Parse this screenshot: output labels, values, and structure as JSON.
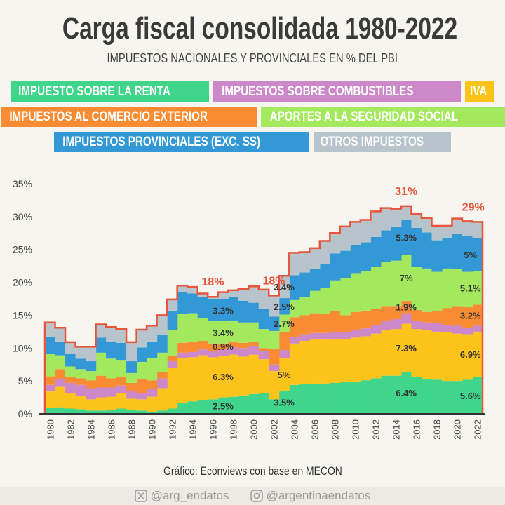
{
  "header": {
    "title": "Carga fiscal consolidada 1980-2022",
    "subtitle": "IMPUESTOS NACIONALES Y PROVINCIALES EN % DEL PBI"
  },
  "legend_rows": [
    [
      0,
      2,
      1
    ],
    [
      3,
      4
    ],
    [
      5,
      6
    ]
  ],
  "chart_data": {
    "type": "area",
    "step": true,
    "stacked": true,
    "title": "Carga fiscal consolidada 1980-2022",
    "subtitle": "IMPUESTOS NACIONALES Y PROVINCIALES EN % DEL PBI",
    "xlabel": "",
    "ylabel": "",
    "ylim": [
      0,
      35
    ],
    "yticks": [
      "0%",
      "5%",
      "10%",
      "15%",
      "20%",
      "25%",
      "30%",
      "35%"
    ],
    "ytick_values": [
      0,
      5,
      10,
      15,
      20,
      25,
      30,
      35
    ],
    "x": [
      1980,
      1981,
      1982,
      1983,
      1984,
      1985,
      1986,
      1987,
      1988,
      1989,
      1990,
      1991,
      1992,
      1993,
      1994,
      1995,
      1996,
      1997,
      1998,
      1999,
      2000,
      2001,
      2002,
      2003,
      2004,
      2005,
      2006,
      2007,
      2008,
      2009,
      2010,
      2011,
      2012,
      2013,
      2014,
      2015,
      2016,
      2017,
      2018,
      2019,
      2020,
      2021,
      2022
    ],
    "xticks": [
      "1980",
      "1982",
      "1984",
      "1986",
      "1988",
      "1990",
      "1992",
      "1994",
      "1996",
      "1998",
      "2000",
      "2002",
      "2004",
      "2006",
      "2008",
      "2010",
      "2012",
      "2014",
      "2016",
      "2018",
      "2020",
      "2022"
    ],
    "grid": false,
    "legend_placement": "top",
    "total_line_color": "#e8553a",
    "series": [
      {
        "name": "IMPUESTO SOBRE LA RENTA",
        "color": "#3fd68b",
        "values": [
          0.9,
          1.0,
          0.8,
          0.7,
          0.5,
          0.5,
          0.6,
          0.8,
          0.6,
          0.5,
          0.3,
          0.5,
          0.8,
          1.6,
          1.9,
          2.1,
          2.2,
          2.5,
          2.6,
          2.8,
          3.0,
          3.1,
          2.2,
          3.5,
          4.4,
          4.5,
          4.6,
          4.6,
          4.7,
          4.8,
          4.9,
          5.1,
          5.4,
          5.8,
          5.8,
          6.4,
          5.6,
          5.3,
          5.2,
          5.0,
          5.0,
          5.2,
          5.6
        ]
      },
      {
        "name": "IVA",
        "color": "#fcc41a",
        "values": [
          2.5,
          3.1,
          2.4,
          2.0,
          1.7,
          2.0,
          2.0,
          2.3,
          1.7,
          1.7,
          2.3,
          3.4,
          6.2,
          6.9,
          6.7,
          6.8,
          6.4,
          6.3,
          6.4,
          5.9,
          6.0,
          5.2,
          4.3,
          5.0,
          6.3,
          6.6,
          6.8,
          6.7,
          6.7,
          6.6,
          6.7,
          6.7,
          6.8,
          6.9,
          7.1,
          7.3,
          7.3,
          7.4,
          7.3,
          7.4,
          7.2,
          6.9,
          6.9
        ]
      },
      {
        "name": "IMPUESTOS SOBRE COMBUSTIBLES",
        "color": "#cc88c8",
        "values": [
          1.0,
          1.2,
          1.5,
          1.7,
          1.7,
          1.5,
          1.4,
          1.2,
          1.2,
          1.0,
          1.2,
          1.5,
          1.0,
          0.8,
          0.8,
          0.9,
          1.0,
          1.0,
          1.1,
          1.3,
          1.3,
          1.2,
          1.0,
          1.2,
          1.0,
          1.0,
          0.9,
          1.0,
          1.0,
          1.0,
          1.1,
          1.2,
          1.3,
          1.4,
          1.5,
          1.6,
          1.3,
          1.2,
          1.3,
          1.1,
          1.2,
          1.0,
          0.9
        ]
      },
      {
        "name": "IMPUESTOS AL COMERCIO EXTERIOR",
        "color": "#f98c33",
        "values": [
          1.3,
          1.5,
          0.9,
          1.0,
          1.2,
          1.8,
          1.4,
          1.3,
          1.2,
          2.1,
          1.3,
          1.0,
          0.8,
          1.5,
          1.6,
          1.3,
          1.1,
          0.9,
          0.9,
          0.8,
          0.6,
          0.5,
          2.4,
          2.7,
          3.0,
          2.9,
          3.0,
          2.9,
          3.3,
          2.6,
          2.8,
          2.7,
          2.4,
          2.3,
          2.0,
          1.9,
          1.6,
          1.6,
          1.8,
          2.6,
          3.0,
          3.2,
          3.2
        ]
      },
      {
        "name": "APORTES A LA SEGURIDAD SOCIAL",
        "color": "#a3e85d",
        "values": [
          3.4,
          2.1,
          1.6,
          1.4,
          1.4,
          3.5,
          3.0,
          2.6,
          1.5,
          2.6,
          3.4,
          2.9,
          4.0,
          4.4,
          4.3,
          3.5,
          3.4,
          3.4,
          3.2,
          3.1,
          3.0,
          2.9,
          2.7,
          2.7,
          2.6,
          2.8,
          3.4,
          4.0,
          4.6,
          5.6,
          5.9,
          6.0,
          6.5,
          6.7,
          6.9,
          7.0,
          6.6,
          6.6,
          6.0,
          6.0,
          5.6,
          5.3,
          5.1
        ]
      },
      {
        "name": "IMPUESTOS PROVINCIALES (EXC. SS)",
        "color": "#3399d6",
        "values": [
          2.6,
          2.1,
          2.0,
          1.6,
          1.5,
          2.3,
          2.5,
          2.6,
          1.8,
          2.2,
          2.5,
          2.7,
          2.9,
          3.3,
          3.0,
          3.2,
          3.3,
          3.3,
          3.6,
          3.3,
          3.0,
          3.0,
          2.2,
          2.5,
          3.8,
          3.7,
          3.4,
          3.6,
          4.1,
          4.2,
          4.3,
          4.4,
          4.5,
          4.8,
          5.1,
          5.3,
          5.9,
          5.5,
          4.8,
          4.6,
          5.4,
          5.4,
          5.0
        ]
      },
      {
        "name": "OTROS IMPUESTOS",
        "color": "#b8c4cc",
        "values": [
          2.2,
          2.1,
          1.7,
          1.8,
          2.2,
          2.0,
          2.3,
          2.1,
          2.9,
          2.7,
          2.4,
          3.0,
          1.7,
          1.0,
          1.0,
          0.5,
          0.4,
          1.1,
          1.0,
          1.8,
          2.5,
          3.0,
          3.2,
          3.4,
          3.4,
          3.1,
          3.1,
          3.5,
          3.1,
          3.7,
          3.5,
          3.4,
          3.9,
          3.4,
          2.8,
          2.1,
          2.1,
          2.2,
          2.2,
          1.9,
          2.3,
          2.3,
          2.5
        ]
      }
    ],
    "segment_labels": [
      {
        "year": 1997,
        "series": 0,
        "text": "2.5%"
      },
      {
        "year": 1997,
        "series": 1,
        "text": "6.3%"
      },
      {
        "year": 1997,
        "series": 3,
        "text": "0.9%"
      },
      {
        "year": 1997,
        "series": 4,
        "text": "3.4%"
      },
      {
        "year": 1997,
        "series": 5,
        "text": "3.3%"
      },
      {
        "year": 2003,
        "series": 0,
        "text": "3.5%"
      },
      {
        "year": 2003,
        "series": 1,
        "text": "5%"
      },
      {
        "year": 2003,
        "series": 4,
        "text": "2.7%"
      },
      {
        "year": 2003,
        "series": 5,
        "text": "2.5%"
      },
      {
        "year": 2003,
        "series": 6,
        "text": "3.4%"
      },
      {
        "year": 2015,
        "series": 0,
        "text": "6.4%"
      },
      {
        "year": 2015,
        "series": 1,
        "text": "7.3%"
      },
      {
        "year": 2015,
        "series": 3,
        "text": "1.9%"
      },
      {
        "year": 2015,
        "series": 4,
        "text": "7%"
      },
      {
        "year": 2015,
        "series": 5,
        "text": "5.3%"
      },
      {
        "year": 2022,
        "series": 0,
        "text": "5.6%"
      },
      {
        "year": 2022,
        "series": 1,
        "text": "6.9%"
      },
      {
        "year": 2022,
        "series": 3,
        "text": "3.2%"
      },
      {
        "year": 2022,
        "series": 4,
        "text": "5.1%"
      },
      {
        "year": 2022,
        "series": 5,
        "text": "5%"
      }
    ],
    "total_labels": [
      {
        "year": 1996,
        "text": "18%"
      },
      {
        "year": 2002,
        "text": "18%"
      },
      {
        "year": 2015,
        "text": "31%"
      },
      {
        "year": 2022,
        "text": "29%"
      }
    ]
  },
  "source": "Gráfico: Econviews con base en MECON",
  "footer": {
    "twitter_icon": "x-twitter-icon",
    "twitter": "@arg_endatos",
    "instagram_icon": "instagram-icon",
    "instagram": "@argentinaendatos"
  }
}
